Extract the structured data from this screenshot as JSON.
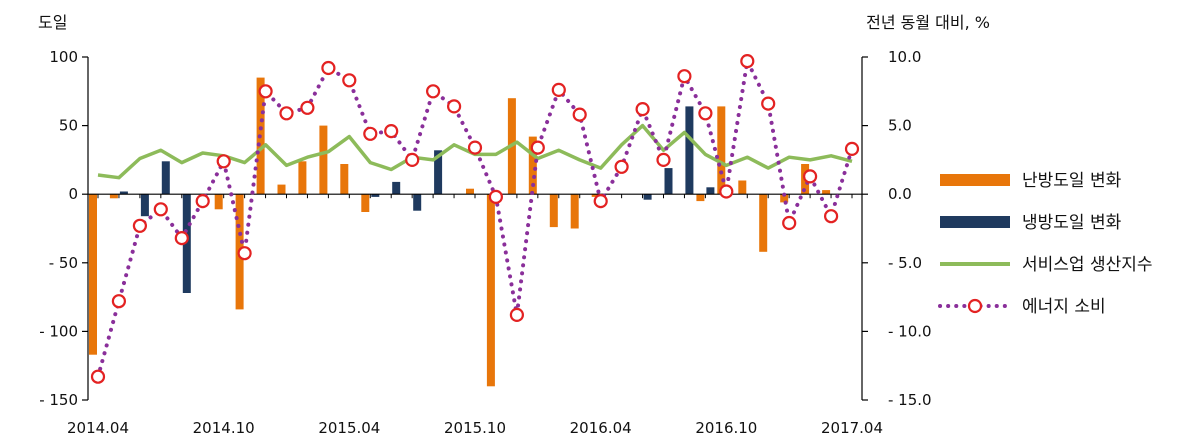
{
  "chart_data": {
    "type": "bar",
    "left_axis_label": "도일",
    "right_axis_label": "전년 동월 대비, %",
    "left_ylim": [
      -150,
      100
    ],
    "left_ticks": [
      "100",
      "50",
      "0",
      "- 50",
      "- 100",
      "- 150"
    ],
    "left_tick_values": [
      100,
      50,
      0,
      -50,
      -100,
      -150
    ],
    "right_ylim": [
      -15,
      10
    ],
    "right_ticks": [
      "10.0",
      "5.0",
      "0.0",
      "- 5.0",
      "- 10.0",
      "- 15.0"
    ],
    "right_tick_values": [
      10,
      5,
      0,
      -5,
      -10,
      -15
    ],
    "x_tick_labels": [
      "2014.04",
      "2014.10",
      "2015.04",
      "2015.10",
      "2016.04",
      "2016.10",
      "2017.04"
    ],
    "x_tick_month_index": [
      0,
      6,
      12,
      18,
      24,
      30,
      36
    ],
    "months": [
      "2014.04",
      "2014.05",
      "2014.06",
      "2014.07",
      "2014.08",
      "2014.09",
      "2014.10",
      "2014.11",
      "2014.12",
      "2015.01",
      "2015.02",
      "2015.03",
      "2015.04",
      "2015.05",
      "2015.06",
      "2015.07",
      "2015.08",
      "2015.09",
      "2015.10",
      "2015.11",
      "2015.12",
      "2016.01",
      "2016.02",
      "2016.03",
      "2016.04",
      "2016.05",
      "2016.06",
      "2016.07",
      "2016.08",
      "2016.09",
      "2016.10",
      "2016.11",
      "2016.12",
      "2017.01",
      "2017.02",
      "2017.03",
      "2017.04"
    ],
    "series": [
      {
        "name": "난방도일 변화",
        "type": "bar",
        "axis": "left",
        "color": "#e8760a",
        "values": [
          -117,
          -3,
          0,
          0,
          0,
          0,
          -11,
          -84,
          85,
          7,
          24,
          50,
          22,
          -13,
          0,
          0,
          0,
          0,
          4,
          -140,
          70,
          42,
          -24,
          -25,
          -2,
          0,
          0,
          0,
          0,
          -5,
          64,
          10,
          -42,
          -6,
          22,
          3,
          0
        ]
      },
      {
        "name": "냉방도일 변화",
        "type": "bar",
        "axis": "left",
        "color": "#1f3a5f",
        "values": [
          0,
          2,
          -16,
          24,
          -72,
          0,
          0,
          0,
          0,
          0,
          0,
          0,
          0,
          -2,
          9,
          -12,
          32,
          0,
          0,
          0,
          0,
          0,
          0,
          0,
          0,
          0,
          -4,
          19,
          64,
          5,
          0,
          0,
          0,
          0,
          0,
          0,
          0
        ]
      },
      {
        "name": "서비스업 생산지수",
        "type": "line",
        "axis": "right",
        "color": "#8dbb5a",
        "values": [
          1.4,
          1.2,
          2.6,
          3.2,
          2.3,
          3.0,
          2.8,
          2.3,
          3.6,
          2.1,
          2.7,
          3.1,
          4.2,
          2.3,
          1.8,
          2.7,
          2.5,
          3.6,
          2.9,
          2.9,
          3.8,
          2.6,
          3.2,
          2.5,
          1.9,
          3.6,
          5.0,
          3.2,
          4.5,
          2.9,
          2.1,
          2.7,
          1.9,
          2.7,
          2.5,
          2.8,
          2.4
        ]
      },
      {
        "name": "에너지 소비",
        "type": "line",
        "axis": "right",
        "color": "#8a2f9a",
        "marker_color": "#e32222",
        "values": [
          -13.3,
          -7.8,
          -2.3,
          -1.1,
          -3.2,
          -0.5,
          2.4,
          -4.3,
          7.5,
          5.9,
          6.3,
          9.2,
          8.3,
          4.4,
          4.6,
          2.5,
          7.5,
          6.4,
          3.4,
          -0.2,
          -8.8,
          3.4,
          7.6,
          5.8,
          -0.5,
          2.0,
          6.2,
          2.5,
          8.6,
          5.9,
          0.2,
          9.7,
          6.6,
          -2.1,
          1.3,
          -1.6,
          3.3
        ]
      }
    ],
    "legend": {
      "position": "right",
      "items": [
        {
          "label": "난방도일 변화",
          "kind": "bar",
          "color": "#e8760a"
        },
        {
          "label": "냉방도일 변화",
          "kind": "bar",
          "color": "#1f3a5f"
        },
        {
          "label": "서비스업 생산지수",
          "kind": "line",
          "color": "#8dbb5a"
        },
        {
          "label": "에너지 소비",
          "kind": "dotted-marker",
          "color": "#8a2f9a",
          "marker_color": "#e32222"
        }
      ]
    },
    "grid": false
  }
}
